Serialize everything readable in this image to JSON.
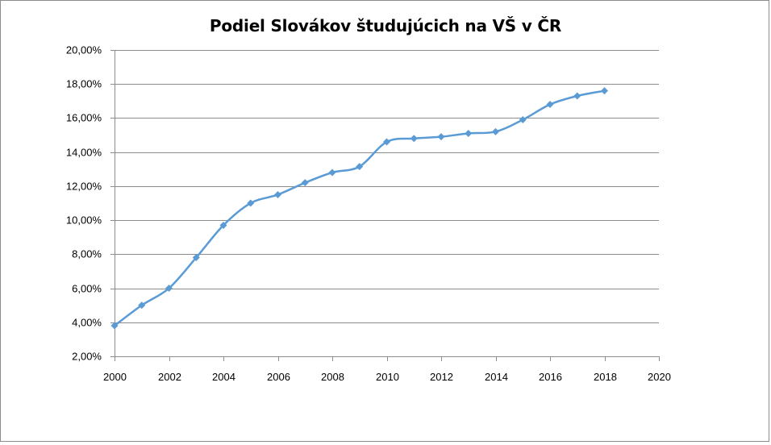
{
  "chart_data": {
    "type": "line",
    "title": "Podiel Slovákov študujúcich na VŠ v ČR",
    "xlabel": "",
    "ylabel": "",
    "x": [
      2000,
      2001,
      2002,
      2003,
      2004,
      2005,
      2006,
      2007,
      2008,
      2009,
      2010,
      2011,
      2012,
      2013,
      2014,
      2015,
      2016,
      2017,
      2018
    ],
    "series": [
      {
        "values": [
          3.8,
          5.0,
          6.0,
          7.8,
          9.7,
          11.0,
          11.5,
          12.2,
          12.8,
          13.15,
          14.6,
          14.8,
          14.9,
          15.1,
          15.2,
          15.9,
          16.8,
          17.3,
          17.6
        ]
      }
    ],
    "xlim": [
      2000,
      2020
    ],
    "ylim": [
      2,
      20
    ],
    "x_ticks": [
      "2000",
      "2002",
      "2004",
      "2006",
      "2008",
      "2010",
      "2012",
      "2014",
      "2016",
      "2018",
      "2020"
    ],
    "y_ticks": [
      "2,00%",
      "4,00%",
      "6,00%",
      "8,00%",
      "10,00%",
      "12,00%",
      "14,00%",
      "16,00%",
      "18,00%",
      "20,00%"
    ],
    "grid": true,
    "smooth": true,
    "marker": "diamond",
    "line_color": "#5b9bd5",
    "grid_color": "#8c8c8c"
  }
}
